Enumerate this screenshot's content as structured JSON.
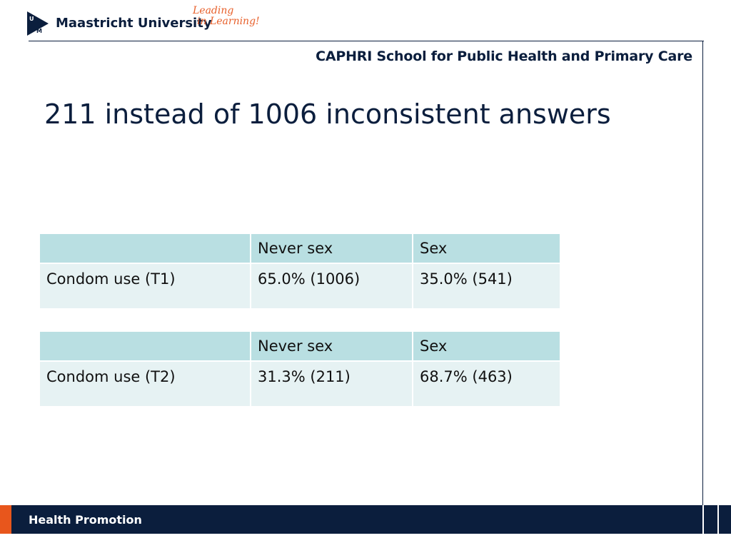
{
  "header": {
    "university": "Maastricht University",
    "tagline_line1": "Leading",
    "tagline_line2": "in Learning!",
    "school": "CAPHRI School for Public Health and Primary Care"
  },
  "slide": {
    "title": "211 instead of 1006 inconsistent answers"
  },
  "tables": [
    {
      "headers": [
        "",
        "Never sex",
        "Sex"
      ],
      "row": [
        "Condom use (T1)",
        "65.0% (1006)",
        "35.0% (541)"
      ]
    },
    {
      "headers": [
        "",
        "Never sex",
        "Sex"
      ],
      "row": [
        "Condom use (T2)",
        "31.3% (211)",
        "68.7% (463)"
      ]
    }
  ],
  "footer": {
    "label": "Health Promotion"
  },
  "colors": {
    "navy": "#0b1e3d",
    "orange": "#e8612c",
    "table_header": "#b9dfe2",
    "table_row": "#e6f2f3"
  }
}
